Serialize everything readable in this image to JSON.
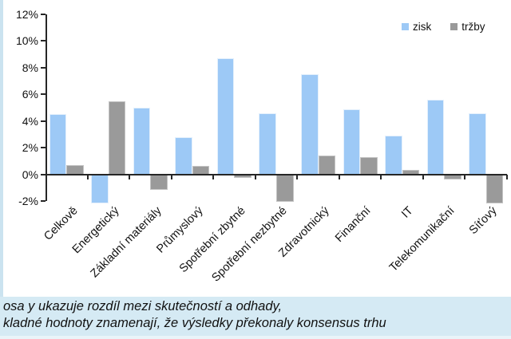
{
  "chart_data": {
    "type": "bar",
    "categories": [
      "Celkově",
      "Energetický",
      "Základní materiály",
      "Průmyslový",
      "Spotřební zbytné",
      "Spotřební nezbytné",
      "Zdravotnický",
      "Finanční",
      "IT",
      "Telekomunikační",
      "Síťový"
    ],
    "series": [
      {
        "name": "zisk",
        "color": "#9dc9f6",
        "values": [
          4.5,
          -2.1,
          5.0,
          2.8,
          8.7,
          4.6,
          7.5,
          4.9,
          2.9,
          5.6,
          4.6
        ]
      },
      {
        "name": "tržby",
        "color": "#9a9a9a",
        "values": [
          0.7,
          5.5,
          -1.1,
          0.65,
          -0.2,
          -2.0,
          1.4,
          1.3,
          0.35,
          -0.3,
          -2.1
        ]
      }
    ],
    "title": "",
    "xlabel": "",
    "ylabel": "",
    "ylim": [
      -2,
      12
    ],
    "ytick_step": 2,
    "ytick_labels": [
      "12%",
      "10%",
      "8%",
      "6%",
      "4%",
      "2%",
      "0%",
      "-2%"
    ],
    "grid": false,
    "legend_position": "top-right"
  },
  "legend": {
    "items": [
      {
        "label": "zisk",
        "color": "#9dc9f6"
      },
      {
        "label": "tržby",
        "color": "#9a9a9a"
      }
    ]
  },
  "caption": {
    "background": "#d5eaf4",
    "line1": "osa y ukazuje rozdíl mezi skutečností a odhady,",
    "line2": "kladné hodnoty znamenají, že výsledky překonaly konsensus trhu"
  }
}
